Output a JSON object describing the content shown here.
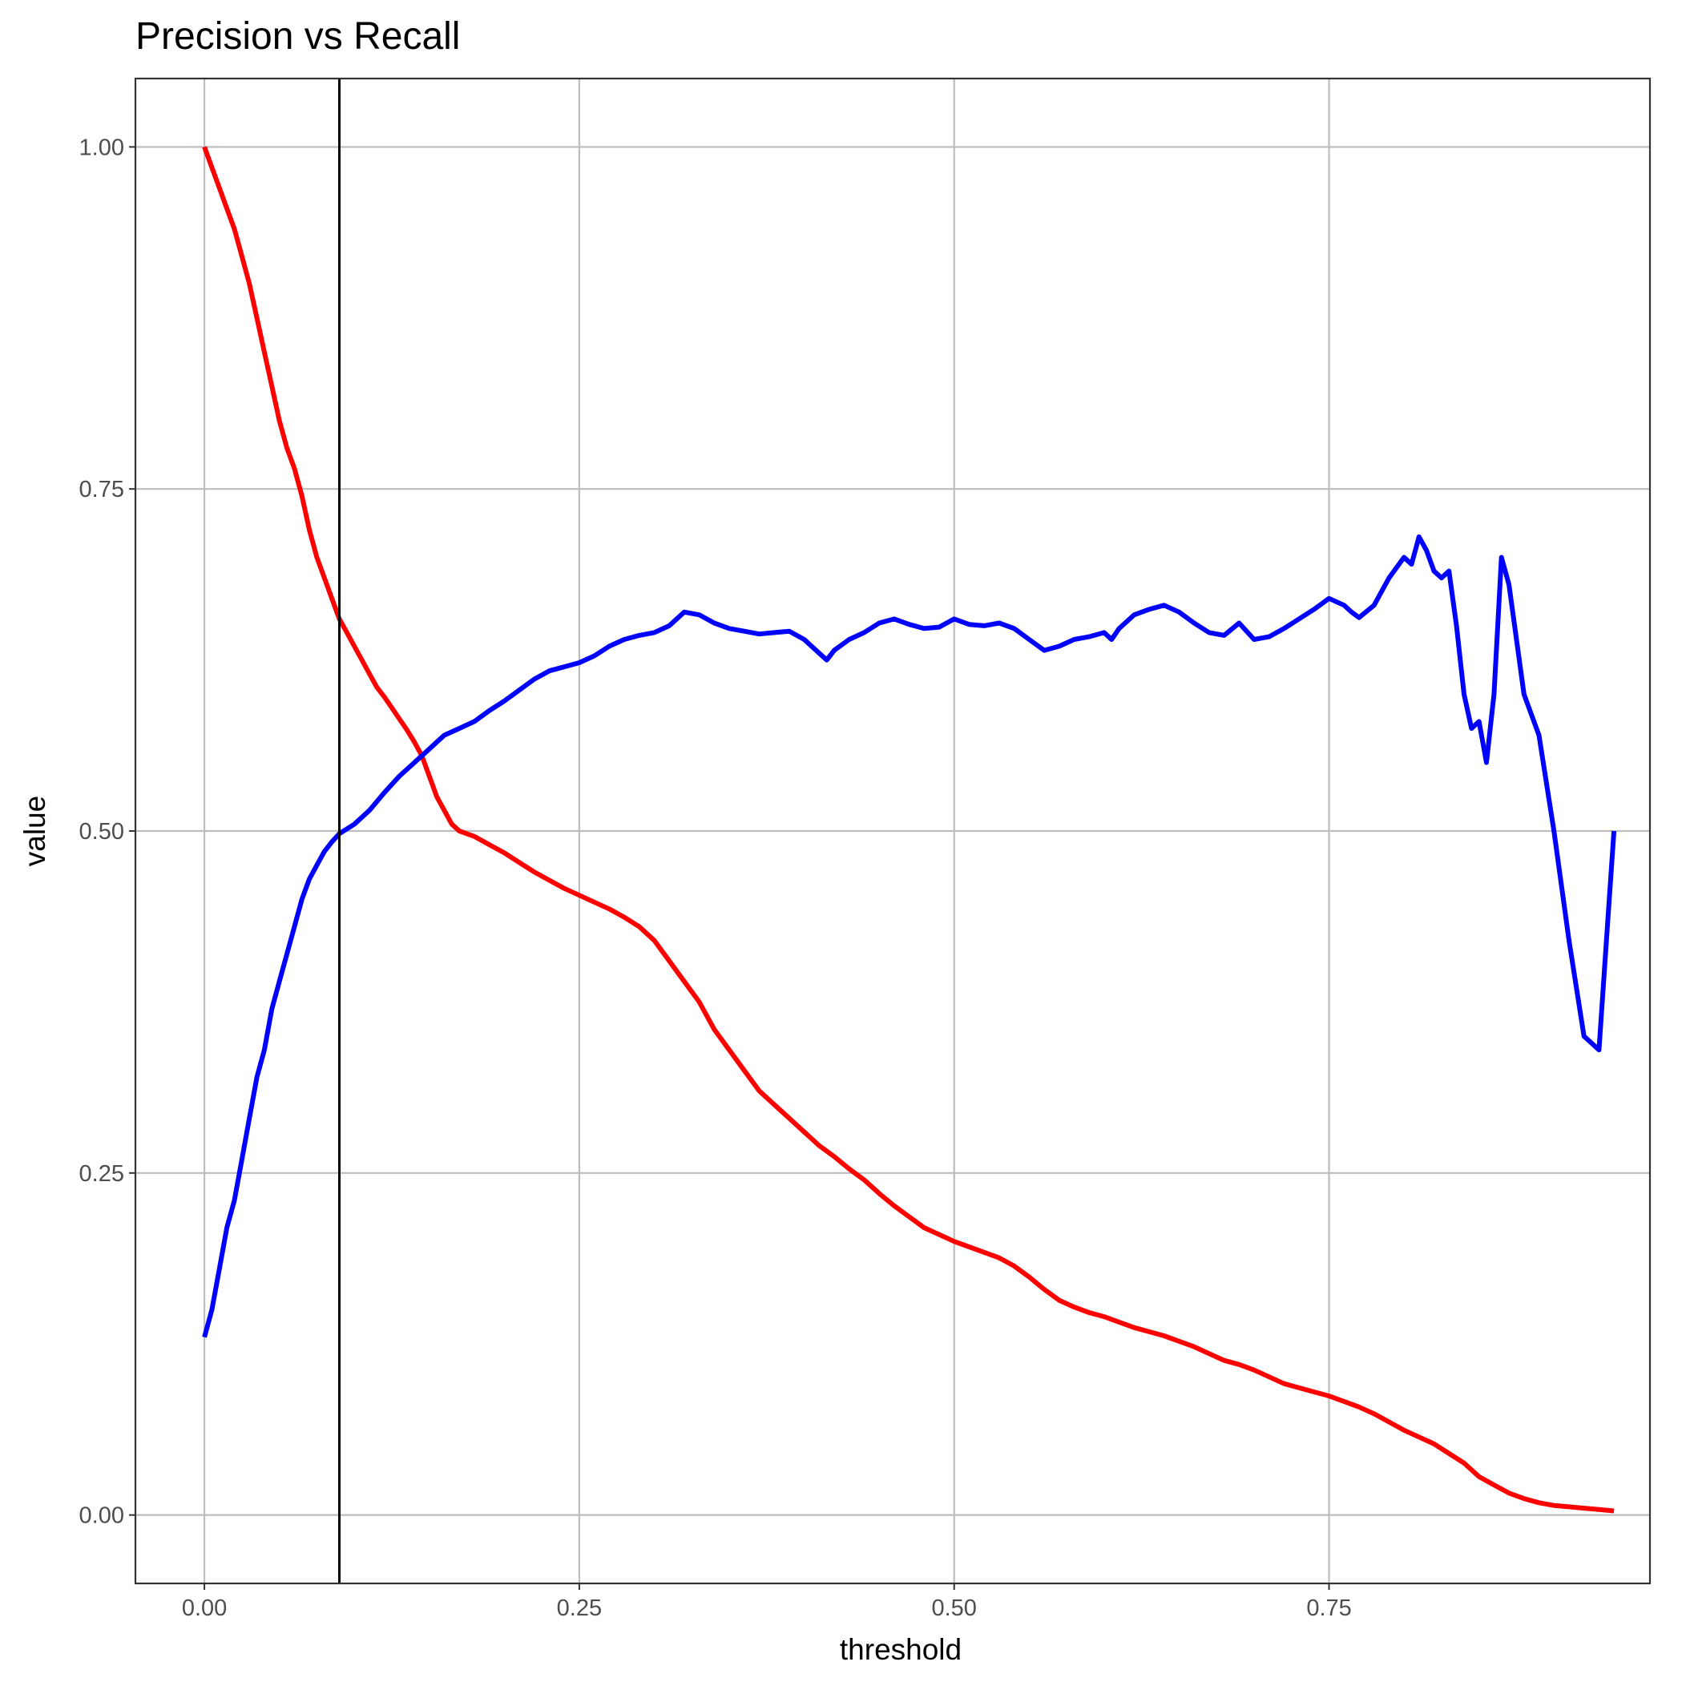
{
  "chart_data": {
    "type": "line",
    "title": "Precision vs Recall",
    "xlabel": "threshold",
    "ylabel": "value",
    "xlim": [
      -0.046,
      0.964
    ],
    "ylim": [
      -0.05,
      1.05
    ],
    "x_ticks": [
      0.0,
      0.25,
      0.5,
      0.75
    ],
    "x_tick_labels": [
      "0.00",
      "0.25",
      "0.50",
      "0.75"
    ],
    "y_ticks": [
      0.0,
      0.25,
      0.5,
      0.75,
      1.0
    ],
    "y_tick_labels": [
      "0.00",
      "0.25",
      "0.50",
      "0.75",
      "1.00"
    ],
    "grid": true,
    "legend": "none",
    "vline": {
      "x": 0.09,
      "color": "#000000"
    },
    "series": [
      {
        "color": "#ff0000",
        "x": [
          0.0,
          0.005,
          0.01,
          0.015,
          0.02,
          0.025,
          0.03,
          0.035,
          0.04,
          0.045,
          0.05,
          0.055,
          0.06,
          0.065,
          0.07,
          0.075,
          0.08,
          0.085,
          0.09,
          0.095,
          0.1,
          0.105,
          0.11,
          0.115,
          0.12,
          0.125,
          0.13,
          0.135,
          0.14,
          0.145,
          0.15,
          0.155,
          0.16,
          0.165,
          0.17,
          0.175,
          0.18,
          0.19,
          0.2,
          0.21,
          0.22,
          0.23,
          0.24,
          0.25,
          0.26,
          0.27,
          0.28,
          0.29,
          0.3,
          0.31,
          0.32,
          0.33,
          0.34,
          0.35,
          0.36,
          0.37,
          0.38,
          0.39,
          0.4,
          0.41,
          0.42,
          0.43,
          0.44,
          0.45,
          0.46,
          0.47,
          0.48,
          0.49,
          0.5,
          0.51,
          0.52,
          0.53,
          0.54,
          0.55,
          0.56,
          0.57,
          0.58,
          0.59,
          0.6,
          0.61,
          0.62,
          0.63,
          0.64,
          0.65,
          0.66,
          0.67,
          0.68,
          0.69,
          0.7,
          0.71,
          0.72,
          0.73,
          0.74,
          0.75,
          0.76,
          0.77,
          0.78,
          0.79,
          0.8,
          0.81,
          0.82,
          0.83,
          0.84,
          0.85,
          0.86,
          0.87,
          0.88,
          0.89,
          0.9,
          0.91,
          0.92,
          0.93,
          0.94
        ],
        "values": [
          1.0,
          0.985,
          0.97,
          0.955,
          0.94,
          0.92,
          0.9,
          0.875,
          0.85,
          0.825,
          0.8,
          0.78,
          0.765,
          0.745,
          0.72,
          0.7,
          0.685,
          0.67,
          0.655,
          0.645,
          0.635,
          0.625,
          0.615,
          0.605,
          0.598,
          0.59,
          0.582,
          0.574,
          0.565,
          0.555,
          0.54,
          0.525,
          0.515,
          0.505,
          0.5,
          0.498,
          0.496,
          0.49,
          0.484,
          0.477,
          0.47,
          0.464,
          0.458,
          0.453,
          0.448,
          0.443,
          0.437,
          0.43,
          0.42,
          0.405,
          0.39,
          0.375,
          0.355,
          0.34,
          0.325,
          0.31,
          0.3,
          0.29,
          0.28,
          0.27,
          0.262,
          0.253,
          0.245,
          0.235,
          0.226,
          0.218,
          0.21,
          0.205,
          0.2,
          0.196,
          0.192,
          0.188,
          0.182,
          0.174,
          0.165,
          0.157,
          0.152,
          0.148,
          0.145,
          0.141,
          0.137,
          0.134,
          0.131,
          0.127,
          0.123,
          0.118,
          0.113,
          0.11,
          0.106,
          0.101,
          0.096,
          0.093,
          0.09,
          0.087,
          0.083,
          0.079,
          0.074,
          0.068,
          0.062,
          0.057,
          0.052,
          0.045,
          0.038,
          0.028,
          0.022,
          0.016,
          0.012,
          0.009,
          0.007,
          0.006,
          0.005,
          0.004,
          0.003
        ]
      },
      {
        "color": "#0000ff",
        "x": [
          0.0,
          0.005,
          0.01,
          0.015,
          0.02,
          0.025,
          0.03,
          0.035,
          0.04,
          0.045,
          0.05,
          0.055,
          0.06,
          0.065,
          0.07,
          0.075,
          0.08,
          0.085,
          0.09,
          0.1,
          0.11,
          0.12,
          0.13,
          0.14,
          0.15,
          0.155,
          0.16,
          0.17,
          0.18,
          0.19,
          0.2,
          0.21,
          0.22,
          0.23,
          0.24,
          0.25,
          0.26,
          0.27,
          0.28,
          0.29,
          0.3,
          0.31,
          0.32,
          0.33,
          0.34,
          0.35,
          0.36,
          0.37,
          0.38,
          0.39,
          0.4,
          0.41,
          0.415,
          0.42,
          0.43,
          0.44,
          0.45,
          0.46,
          0.47,
          0.48,
          0.49,
          0.5,
          0.51,
          0.52,
          0.53,
          0.54,
          0.55,
          0.56,
          0.57,
          0.58,
          0.59,
          0.6,
          0.605,
          0.61,
          0.62,
          0.63,
          0.64,
          0.65,
          0.66,
          0.67,
          0.68,
          0.69,
          0.7,
          0.71,
          0.72,
          0.73,
          0.74,
          0.75,
          0.76,
          0.765,
          0.77,
          0.78,
          0.79,
          0.8,
          0.805,
          0.81,
          0.815,
          0.82,
          0.825,
          0.83,
          0.835,
          0.84,
          0.845,
          0.85,
          0.855,
          0.86,
          0.865,
          0.87,
          0.88,
          0.89,
          0.9,
          0.91,
          0.92,
          0.93,
          0.935,
          0.94
        ],
        "values": [
          0.13,
          0.15,
          0.18,
          0.21,
          0.23,
          0.26,
          0.29,
          0.32,
          0.34,
          0.37,
          0.39,
          0.41,
          0.43,
          0.45,
          0.465,
          0.475,
          0.485,
          0.492,
          0.498,
          0.505,
          0.515,
          0.528,
          0.54,
          0.55,
          0.56,
          0.565,
          0.57,
          0.575,
          0.58,
          0.588,
          0.595,
          0.603,
          0.611,
          0.617,
          0.62,
          0.623,
          0.628,
          0.635,
          0.64,
          0.643,
          0.645,
          0.65,
          0.66,
          0.658,
          0.652,
          0.648,
          0.646,
          0.644,
          0.645,
          0.646,
          0.64,
          0.63,
          0.625,
          0.632,
          0.64,
          0.645,
          0.652,
          0.655,
          0.651,
          0.648,
          0.649,
          0.655,
          0.651,
          0.65,
          0.652,
          0.648,
          0.64,
          0.632,
          0.635,
          0.64,
          0.642,
          0.645,
          0.64,
          0.648,
          0.658,
          0.662,
          0.665,
          0.66,
          0.652,
          0.645,
          0.643,
          0.652,
          0.64,
          0.642,
          0.648,
          0.655,
          0.662,
          0.67,
          0.665,
          0.66,
          0.656,
          0.665,
          0.685,
          0.7,
          0.695,
          0.715,
          0.705,
          0.69,
          0.685,
          0.69,
          0.65,
          0.6,
          0.575,
          0.58,
          0.55,
          0.6,
          0.7,
          0.68,
          0.6,
          0.57,
          0.5,
          0.42,
          0.35,
          0.34,
          0.42,
          0.5
        ]
      }
    ]
  }
}
